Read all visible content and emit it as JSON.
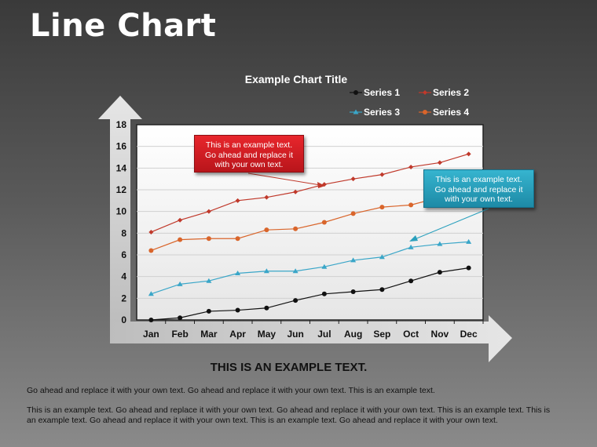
{
  "slide": {
    "title": "Line Chart",
    "subtitle": "THIS IS AN EXAMPLE TEXT.",
    "paragraphs": [
      "Go ahead and replace it with your own text. Go ahead and replace it with your own text. This is an example text.",
      "This is an example text. Go ahead and replace it with your own text. Go ahead and replace it with your own text. This is an example text. This is an example text. Go ahead and replace it with your own text. This is an example text. Go ahead and replace it with your own text."
    ]
  },
  "callouts": {
    "red": "This is an example text. Go ahead and replace it with your own text.",
    "blue": "This is an example text. Go ahead and replace it with your own text."
  },
  "colors": {
    "series1": "#111111",
    "series2": "#c0392b",
    "series3": "#3aa6c8",
    "series4": "#d9652b",
    "callout_red": "#d41c22",
    "callout_blue": "#2aa0bd"
  },
  "chart_data": {
    "type": "line",
    "title": "Example Chart Title",
    "categories": [
      "Jan",
      "Feb",
      "Mar",
      "Apr",
      "May",
      "Jun",
      "Jul",
      "Aug",
      "Sep",
      "Oct",
      "Nov",
      "Dec"
    ],
    "yticks": [
      "0",
      "2",
      "4",
      "6",
      "8",
      "10",
      "12",
      "14",
      "16",
      "18"
    ],
    "ylim": [
      0,
      18
    ],
    "grid": true,
    "legend_position": "top-right",
    "series": [
      {
        "name": "Series 1",
        "marker": "circle",
        "values": [
          0.0,
          0.2,
          0.8,
          0.9,
          1.1,
          1.8,
          2.4,
          2.6,
          2.8,
          3.6,
          4.4,
          4.8
        ]
      },
      {
        "name": "Series 2",
        "marker": "diamond",
        "values": [
          8.1,
          9.2,
          10.0,
          11.0,
          11.3,
          11.8,
          12.5,
          13.0,
          13.4,
          14.1,
          14.5,
          15.3
        ]
      },
      {
        "name": "Series 3",
        "marker": "triangle",
        "values": [
          2.4,
          3.3,
          3.6,
          4.3,
          4.5,
          4.5,
          4.9,
          5.5,
          5.8,
          6.7,
          7.0,
          7.2
        ]
      },
      {
        "name": "Series 4",
        "marker": "circle",
        "values": [
          6.4,
          7.4,
          7.5,
          7.5,
          8.3,
          8.4,
          9.0,
          9.8,
          10.4,
          10.6,
          11.3,
          11.6
        ]
      }
    ]
  }
}
